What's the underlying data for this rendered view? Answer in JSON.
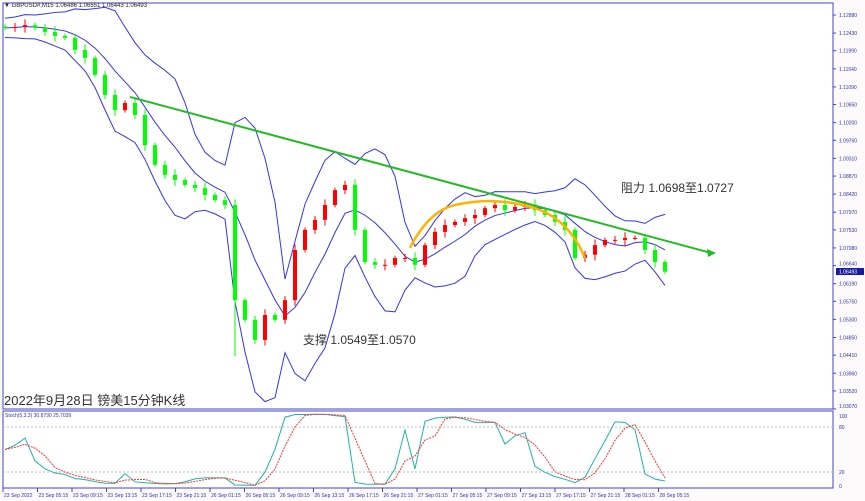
{
  "header": {
    "symbol": "GBPUSD#,M15",
    "ohlc": "1.06486 1.06551 1.06443 1.06493"
  },
  "caption": "2022年9月28日 镑美15分钟K线",
  "annotations": {
    "resistance": "阻力 1.0698至1.0727",
    "support": "支撑 1.0549至1.0570"
  },
  "stoch": {
    "label": "Stoch(5,3,3) 30.8730 25.7039",
    "levels": [
      "100",
      "80",
      "20",
      "0"
    ]
  },
  "colors": {
    "up": "#ff0000",
    "down": "#00ff00",
    "bands": "#3333ee",
    "trendline": "#22bb22",
    "curve": "#ffb300",
    "axis": "#4444cc",
    "stoch_main": "#20b2aa",
    "stoch_signal": "#ff3333"
  },
  "chart_data": {
    "type": "candlestick",
    "price_axis": [
      "1.12880",
      "1.12430",
      "1.11990",
      "1.11540",
      "1.11090",
      "1.10650",
      "1.10200",
      "1.09760",
      "1.09310",
      "1.08870",
      "1.08420",
      "1.07970",
      "1.07530",
      "1.07080",
      "1.06640",
      "1.06190",
      "1.05750",
      "1.05300",
      "1.04850",
      "1.04410",
      "1.03960",
      "1.03520",
      "1.03070"
    ],
    "current_price": "1.06493",
    "ylim": [
      1.0307,
      1.1288
    ],
    "time_axis": [
      "23 Sep 2022",
      "23 Sep 05:15",
      "23 Sep 09:15",
      "23 Sep 13:15",
      "23 Sep 17:15",
      "23 Sep 21:15",
      "26 Sep 01:15",
      "26 Sep 05:15",
      "26 Sep 09:15",
      "26 Sep 13:15",
      "26 Sep 17:15",
      "26 Sep 21:15",
      "27 Sep 01:15",
      "27 Sep 05:15",
      "27 Sep 09:15",
      "27 Sep 13:15",
      "27 Sep 17:15",
      "27 Sep 21:15",
      "28 Sep 01:15",
      "28 Sep 05:15"
    ],
    "closes": [
      1.1256,
      1.1258,
      1.1263,
      1.1256,
      1.1246,
      1.1236,
      1.1231,
      1.1201,
      1.1181,
      1.1139,
      1.1089,
      1.1051,
      1.1069,
      1.1039,
      1.0964,
      1.0915,
      1.089,
      1.0877,
      1.0865,
      1.0857,
      1.084,
      1.0827,
      1.0815,
      1.0578,
      1.0529,
      1.0479,
      1.0541,
      1.0529,
      1.0578,
      1.0703,
      1.0753,
      1.0778,
      1.0815,
      1.0852,
      1.0865,
      1.0753,
      1.0673,
      1.0666,
      1.0666,
      1.0683,
      1.0683,
      1.0666,
      1.0715,
      1.0748,
      1.0765,
      1.0773,
      1.0782,
      1.079,
      1.0807,
      1.0815,
      1.0802,
      1.081,
      1.0815,
      1.0802,
      1.079,
      1.0773,
      1.0753,
      1.0683,
      1.0691,
      1.0715,
      1.0728,
      1.0728,
      1.0733,
      1.0733,
      1.0703,
      1.0673,
      1.0649
    ],
    "trendline": {
      "from": 1.1084,
      "to": 1.0695
    },
    "indicators": [
      "Bollinger Bands",
      "Stoch(5,3,3)"
    ]
  }
}
